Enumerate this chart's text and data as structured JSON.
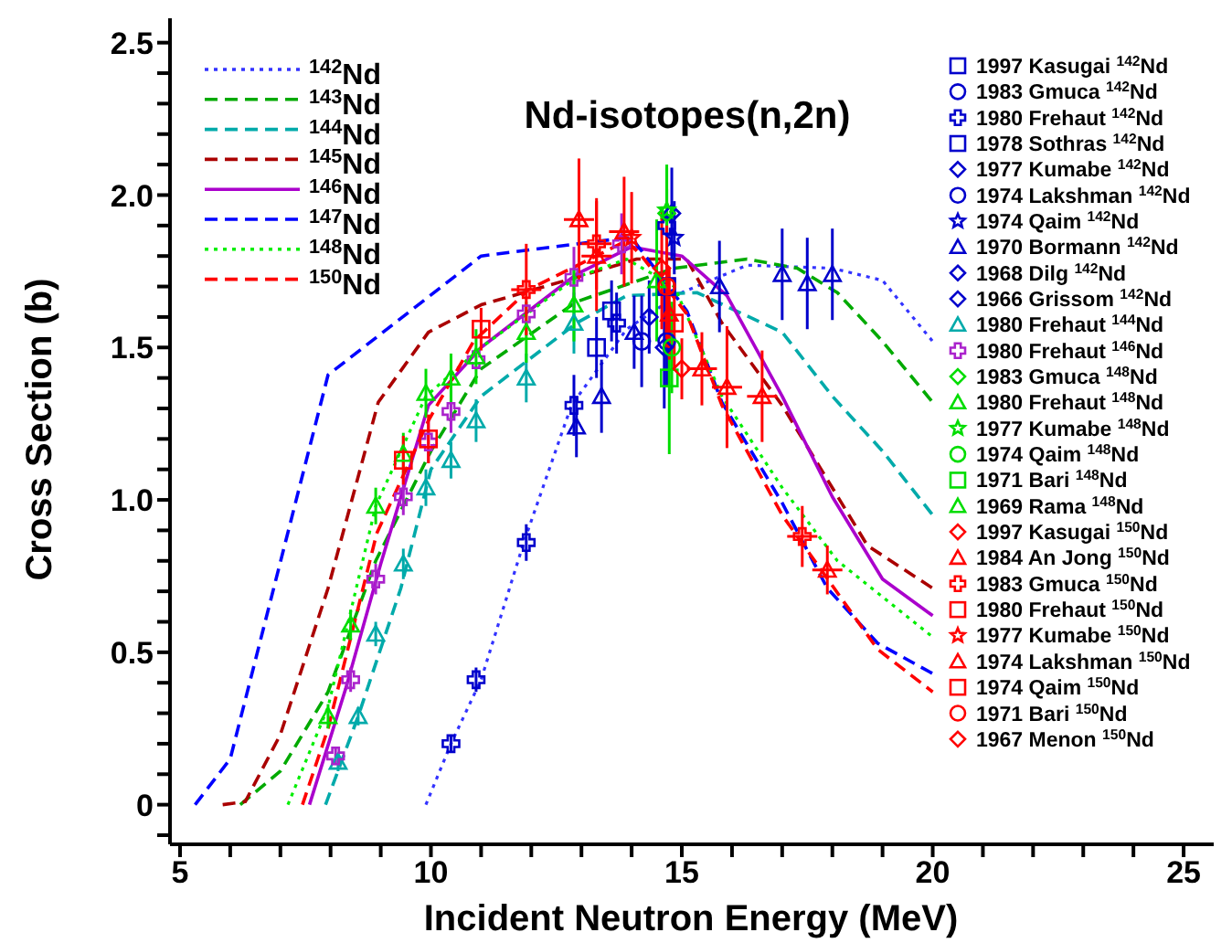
{
  "chart_data": {
    "type": "line",
    "title": "Nd-isotopes(n,2n)",
    "xlabel": "Incident Neutron Energy (MeV)",
    "ylabel": "Cross Section (b)",
    "xlim": [
      4.8,
      25.6
    ],
    "ylim": [
      -0.13,
      2.58
    ],
    "xticks": [
      5,
      {
        "value": 6,
        "label": null
      },
      {
        "value": 7,
        "label": null
      },
      {
        "value": 8,
        "label": null
      },
      {
        "value": 9,
        "label": null
      },
      10,
      {
        "value": 11,
        "label": null
      },
      {
        "value": 12,
        "label": null
      },
      {
        "value": 13,
        "label": null
      },
      {
        "value": 14,
        "label": null
      },
      15,
      {
        "value": 16,
        "label": null
      },
      {
        "value": 17,
        "label": null
      },
      {
        "value": 18,
        "label": null
      },
      {
        "value": 19,
        "label": null
      },
      20,
      {
        "value": 21,
        "label": null
      },
      {
        "value": 22,
        "label": null
      },
      {
        "value": 23,
        "label": null
      },
      {
        "value": 24,
        "label": null
      },
      25
    ],
    "yticks": [
      {
        "value": -0.1,
        "label": null
      },
      0,
      {
        "value": 0.1,
        "label": null
      },
      {
        "value": 0.2,
        "label": null
      },
      {
        "value": 0.3,
        "label": null
      },
      {
        "value": 0.4,
        "label": null
      },
      0.5,
      {
        "value": 0.6,
        "label": null
      },
      {
        "value": 0.7,
        "label": null
      },
      {
        "value": 0.8,
        "label": null
      },
      {
        "value": 0.9,
        "label": null
      },
      {
        "value": 1,
        "label": "1.0"
      },
      {
        "value": 1.1,
        "label": null
      },
      {
        "value": 1.2,
        "label": null
      },
      {
        "value": 1.3,
        "label": null
      },
      {
        "value": 1.4,
        "label": null
      },
      1.5,
      {
        "value": 1.6,
        "label": null
      },
      {
        "value": 1.7,
        "label": null
      },
      {
        "value": 1.8,
        "label": null
      },
      {
        "value": 1.9,
        "label": null
      },
      {
        "value": 2,
        "label": "2.0"
      },
      {
        "value": 2.1,
        "label": null
      },
      {
        "value": 2.2,
        "label": null
      },
      {
        "value": 2.3,
        "label": null
      },
      {
        "value": 2.4,
        "label": null
      },
      2.5
    ],
    "legend": "top left",
    "grid": false,
    "series": [
      {
        "name": "$^{142}$Nd",
        "color": "#3333ff",
        "line_style": "dotted",
        "x": [
          9.9,
          10.4,
          11.0,
          11.85,
          12.8,
          13.9,
          15.0,
          16.3,
          18.0,
          19.0,
          20.0
        ],
        "values": [
          0,
          0.2,
          0.41,
          0.86,
          1.31,
          1.56,
          1.68,
          1.77,
          1.76,
          1.72,
          1.52
        ]
      },
      {
        "name": "$^{143}$Nd",
        "color": "#00aa00",
        "line_style": "dashed",
        "x": [
          6.2,
          7.0,
          7.95,
          8.9,
          10.0,
          11.0,
          12.9,
          14.85,
          16.3,
          17.3,
          18.1,
          19.0,
          20.0
        ],
        "values": [
          0,
          0.11,
          0.37,
          0.8,
          1.16,
          1.43,
          1.65,
          1.76,
          1.79,
          1.76,
          1.68,
          1.52,
          1.32
        ]
      },
      {
        "name": "$^{144}$Nd",
        "color": "#00aaaa",
        "line_style": "dashed",
        "x": [
          7.9,
          8.55,
          9.4,
          10.0,
          11.0,
          12.9,
          13.9,
          15.3,
          17.0,
          18.0,
          19.0,
          20.0
        ],
        "values": [
          0,
          0.29,
          0.71,
          1.1,
          1.34,
          1.58,
          1.67,
          1.68,
          1.55,
          1.34,
          1.16,
          0.95
        ]
      },
      {
        "name": "$^{145}$Nd",
        "color": "#aa0000",
        "line_style": "dashed",
        "x": [
          5.85,
          6.3,
          7.0,
          7.95,
          8.95,
          9.95,
          11.0,
          12.9,
          14.1,
          15.1,
          15.8,
          17.0,
          18.7,
          20.0
        ],
        "values": [
          0,
          0.01,
          0.23,
          0.71,
          1.32,
          1.55,
          1.64,
          1.73,
          1.79,
          1.79,
          1.58,
          1.31,
          0.85,
          0.71
        ]
      },
      {
        "name": "$^{146}$Nd",
        "color": "#aa00cc",
        "line_style": "solid",
        "x": [
          7.58,
          8.3,
          9.0,
          9.95,
          11.0,
          12.9,
          14.0,
          15.0,
          15.9,
          17.0,
          18.0,
          19.0,
          20.0
        ],
        "values": [
          0,
          0.38,
          0.79,
          1.31,
          1.5,
          1.74,
          1.83,
          1.8,
          1.67,
          1.34,
          1.01,
          0.74,
          0.62
        ]
      },
      {
        "name": "$^{147}$Nd",
        "color": "#0000ff",
        "line_style": "dashed",
        "x": [
          5.3,
          6.0,
          7.95,
          11.0,
          13.9,
          14.0,
          15.1,
          15.8,
          17.0,
          17.9,
          18.9,
          20.0
        ],
        "values": [
          0,
          0.15,
          1.41,
          1.8,
          1.86,
          1.86,
          1.62,
          1.32,
          0.99,
          0.71,
          0.53,
          0.43
        ]
      },
      {
        "name": "$^{148}$Nd",
        "color": "#00ee00",
        "line_style": "dotted",
        "x": [
          7.15,
          7.95,
          8.9,
          9.9,
          11.0,
          12.9,
          13.9,
          14.85,
          15.8,
          17.0,
          18.1,
          20.0
        ],
        "values": [
          0,
          0.32,
          0.98,
          1.34,
          1.5,
          1.73,
          1.79,
          1.7,
          1.34,
          1.04,
          0.8,
          0.55
        ]
      },
      {
        "name": "$^{150}$Nd",
        "color": "#ff0000",
        "line_style": "dashed",
        "x": [
          7.44,
          7.95,
          8.92,
          9.95,
          10.85,
          11.95,
          13.9,
          14.2,
          15.1,
          15.8,
          17.0,
          18.9,
          20.0
        ],
        "values": [
          0,
          0.25,
          0.89,
          1.26,
          1.52,
          1.69,
          1.85,
          1.8,
          1.61,
          1.31,
          0.95,
          0.51,
          0.37
        ]
      },
      {
        "type": "scatter",
        "name": "1997 Kasugai $^{142}$Nd",
        "color": "#0000cc",
        "marker": "square",
        "x": [
          13.3,
          13.6
        ],
        "values": [
          1.5,
          1.62
        ],
        "errors": [
          0.1,
          0.1
        ]
      },
      {
        "type": "scatter",
        "name": "1983 Gmuca $^{142}$Nd",
        "color": "#0000cc",
        "marker": "circle",
        "x": [
          14.2
        ],
        "values": [
          1.52
        ],
        "errors": [
          0.15
        ]
      },
      {
        "type": "scatter",
        "name": "1980 Frehaut $^{142}$Nd",
        "color": "#0000cc",
        "marker": "cross",
        "x": [
          10.4,
          10.9,
          11.9,
          12.85,
          13.7,
          14.7
        ],
        "values": [
          0.2,
          0.41,
          0.86,
          1.31,
          1.58,
          1.9
        ],
        "errors": [
          0.03,
          0.04,
          0.06,
          0.1,
          0.1,
          0.12
        ]
      },
      {
        "type": "scatter",
        "name": "1978 Sothras $^{142}$Nd",
        "color": "#0000cc",
        "marker": "square",
        "x": [
          14.7
        ],
        "values": [
          1.7
        ],
        "errors": [
          0.15
        ]
      },
      {
        "type": "scatter",
        "name": "1977 Kumabe $^{142}$Nd",
        "color": "#0000cc",
        "marker": "diamond",
        "x": [
          14.8
        ],
        "values": [
          1.94
        ],
        "errors": [
          0.15
        ]
      },
      {
        "type": "scatter",
        "name": "1974 Lakshman $^{142}$Nd",
        "color": "#0000cc",
        "marker": "circle",
        "x": [
          14.7
        ],
        "values": [
          1.52
        ],
        "errors": [
          0.15
        ]
      },
      {
        "type": "scatter",
        "name": "1974 Qaim $^{142}$Nd",
        "color": "#0000cc",
        "marker": "star",
        "x": [
          14.85
        ],
        "values": [
          1.86
        ],
        "errors": [
          0.12
        ]
      },
      {
        "type": "scatter",
        "name": "1970 Bormann $^{142}$Nd",
        "color": "#0000cc",
        "marker": "triangle",
        "x": [
          12.9,
          13.4,
          14.05,
          15.75,
          17.0,
          17.5,
          18.0
        ],
        "values": [
          1.24,
          1.34,
          1.55,
          1.7,
          1.74,
          1.71,
          1.74
        ],
        "errors": [
          0.1,
          0.12,
          0.12,
          0.15,
          0.15,
          0.15,
          0.15
        ]
      },
      {
        "type": "scatter",
        "name": "1968 Dilg $^{142}$Nd",
        "color": "#0000cc",
        "marker": "diamond",
        "x": [
          14.35
        ],
        "values": [
          1.6
        ],
        "errors": [
          0.12
        ]
      },
      {
        "type": "scatter",
        "name": "1966 Grissom $^{142}$Nd",
        "color": "#0000cc",
        "marker": "diamond",
        "x": [
          14.65
        ],
        "values": [
          1.5
        ],
        "errors": [
          0.2
        ]
      },
      {
        "type": "scatter",
        "name": "1980 Frehaut $^{144}$Nd",
        "color": "#00aaaa",
        "marker": "triangle",
        "x": [
          8.15,
          8.55,
          8.9,
          9.45,
          9.9,
          10.4,
          10.9,
          11.9,
          12.85
        ],
        "values": [
          0.14,
          0.29,
          0.56,
          0.79,
          1.04,
          1.13,
          1.26,
          1.4,
          1.58
        ],
        "errors": [
          0.03,
          0.03,
          0.04,
          0.05,
          0.06,
          0.06,
          0.07,
          0.08,
          0.1
        ]
      },
      {
        "type": "scatter",
        "name": "1980 Frehaut $^{146}$Nd",
        "color": "#aa22cc",
        "marker": "cross",
        "x": [
          8.1,
          8.4,
          8.9,
          9.45,
          9.95,
          10.4,
          10.9,
          11.9,
          12.85,
          13.8
        ],
        "values": [
          0.16,
          0.41,
          0.74,
          1.01,
          1.19,
          1.29,
          1.46,
          1.61,
          1.73,
          1.84
        ],
        "errors": [
          0.03,
          0.04,
          0.05,
          0.06,
          0.07,
          0.07,
          null,
          null,
          0.1,
          0.1
        ]
      },
      {
        "type": "scatter",
        "name": "1983 Gmuca $^{148}$Nd",
        "color": "#00dd00",
        "marker": "diamond",
        "x": [
          14.7
        ],
        "values": [
          1.94
        ],
        "errors": [
          0.15
        ]
      },
      {
        "type": "scatter",
        "name": "1980 Frehaut $^{148}$Nd",
        "color": "#00dd00",
        "marker": "triangle",
        "x": [
          7.95,
          8.4,
          8.9,
          9.45,
          9.9,
          10.4,
          10.9,
          11.9,
          12.85
        ],
        "values": [
          0.29,
          0.59,
          0.98,
          1.15,
          1.35,
          1.4,
          1.47,
          1.55,
          1.64
        ],
        "errors": [
          0.04,
          0.05,
          0.06,
          0.07,
          0.08,
          0.08,
          0.09,
          0.1,
          0.12
        ]
      },
      {
        "type": "scatter",
        "name": "1977 Kumabe $^{148}$Nd",
        "color": "#00dd00",
        "marker": "star",
        "x": [
          14.7
        ],
        "values": [
          1.95
        ],
        "errors": [
          0.15
        ]
      },
      {
        "type": "scatter",
        "name": "1974 Qaim $^{148}$Nd",
        "color": "#00dd00",
        "marker": "circle",
        "x": [
          14.8
        ],
        "values": [
          1.5
        ],
        "errors": [
          0.15
        ]
      },
      {
        "type": "scatter",
        "name": "1971 Bari $^{148}$Nd",
        "color": "#00dd00",
        "marker": "square",
        "x": [
          14.75
        ],
        "values": [
          1.4
        ],
        "errors": [
          0.25
        ]
      },
      {
        "type": "scatter",
        "name": "1969 Rama $^{148}$Nd",
        "color": "#00dd00",
        "marker": "triangle",
        "x": [
          14.5
        ],
        "values": [
          1.72
        ],
        "errors": [
          0.2
        ]
      },
      {
        "type": "scatter",
        "name": "1997 Kasugai $^{150}$Nd",
        "color": "#ff0000",
        "marker": "diamond",
        "x": [
          15.0
        ],
        "values": [
          1.43
        ],
        "errors": [
          0.1
        ]
      },
      {
        "type": "scatter",
        "name": "1984 An Jong $^{150}$Nd",
        "color": "#ff0000",
        "marker": "triangle",
        "x": [
          12.95,
          13.3,
          13.85,
          15.4,
          15.9,
          16.6,
          17.9
        ],
        "values": [
          1.92,
          1.8,
          1.88,
          1.43,
          1.37,
          1.34,
          0.77
        ],
        "errors": [
          0.2,
          0.18,
          0.18,
          0.12,
          0.2,
          0.15,
          0.08
        ],
        "xerrors": [
          0.3,
          0.3,
          0.3,
          0.3,
          0.3,
          0.3,
          0.3
        ]
      },
      {
        "type": "scatter",
        "name": "1983 Gmuca $^{150}$Nd",
        "color": "#ff0000",
        "marker": "cross",
        "x": [
          11.9,
          13.3,
          17.4
        ],
        "values": [
          1.69,
          1.84,
          0.88
        ],
        "errors": [
          0.15,
          0.15,
          0.1
        ],
        "xerrors": [
          0.3,
          0.3,
          0.3
        ]
      },
      {
        "type": "scatter",
        "name": "1980 Frehaut $^{150}$Nd",
        "color": "#ff0000",
        "marker": "square",
        "x": [
          9.45,
          9.95,
          11.0
        ],
        "values": [
          1.13,
          1.2,
          1.56
        ],
        "errors": [
          0.08,
          0.08,
          0.07
        ]
      },
      {
        "type": "scatter",
        "name": "1977 Kumabe $^{150}$Nd",
        "color": "#ff0000",
        "marker": "star",
        "x": [
          14.0
        ],
        "values": [
          1.86
        ],
        "errors": [
          0.15
        ]
      },
      {
        "type": "scatter",
        "name": "1974 Lakshman $^{150}$Nd",
        "color": "#ff0000",
        "marker": "triangle",
        "x": [
          14.75
        ],
        "values": [
          1.61
        ],
        "errors": [
          0.15
        ]
      },
      {
        "type": "scatter",
        "name": "1974 Qaim $^{150}$Nd",
        "color": "#ff0000",
        "marker": "square",
        "x": [
          14.85
        ],
        "values": [
          1.58
        ],
        "errors": [
          0.15
        ]
      },
      {
        "type": "scatter",
        "name": "1971 Bari $^{150}$Nd",
        "color": "#ff0000",
        "marker": "circle",
        "x": [
          14.7
        ],
        "values": [
          1.7
        ],
        "errors": [
          0.2
        ]
      },
      {
        "type": "scatter",
        "name": "1967 Menon $^{150}$Nd",
        "color": "#ff0000",
        "marker": "diamond",
        "x": [
          14.6
        ],
        "values": [
          1.76
        ],
        "errors": [
          0.2
        ]
      }
    ]
  }
}
